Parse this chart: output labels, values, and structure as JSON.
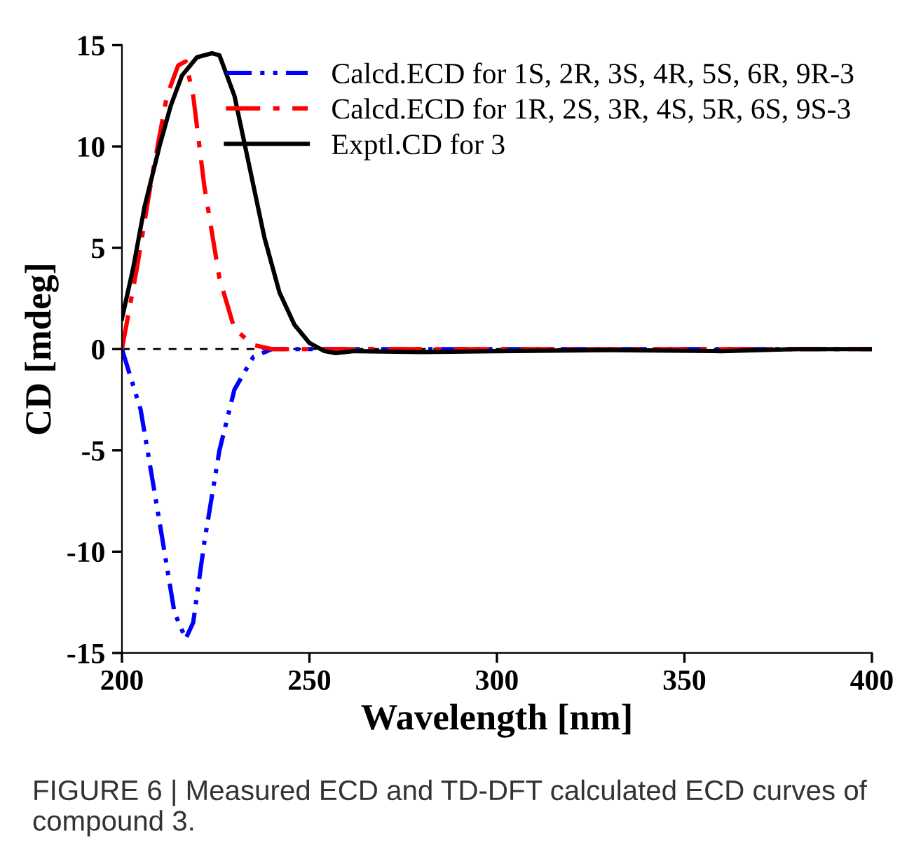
{
  "chart_data": {
    "type": "line",
    "xlabel": "Wavelength [nm]",
    "ylabel": "CD [mdeg]",
    "xlim": [
      200,
      400
    ],
    "xticks": [
      200,
      250,
      300,
      350,
      400
    ],
    "ylim": [
      -15,
      15
    ],
    "yticks": [
      -15,
      -10,
      -5,
      0,
      5,
      10,
      15
    ],
    "grid": false,
    "legend": "top right",
    "marker": "none",
    "ref_lines": [
      {
        "axis": "y",
        "value": 0,
        "color": "#000000",
        "line_style": "dashed"
      }
    ],
    "annotations": [
      "FIGURE 6 | Measured ECD and TD-DFT calculated ECD curves of compound 3."
    ],
    "series": [
      {
        "name": "Calcd.ECD for 1S, 2R, 3S, 4R, 5S, 6R, 9R-3",
        "color": "#0000ff",
        "line_style": "dotted",
        "x": [
          200,
          205,
          210,
          214,
          217,
          219,
          222,
          226,
          230,
          235,
          240,
          260,
          300,
          350,
          400
        ],
        "values": [
          0,
          -3,
          -8.5,
          -13,
          -14.3,
          -13.5,
          -9.5,
          -5,
          -2,
          -0.4,
          0,
          0,
          0,
          0,
          0
        ]
      },
      {
        "name": "Calcd.ECD for 1R, 2S, 3R, 4S, 5R, 6S, 9S-3",
        "color": "#ff0000",
        "line_style": "dashed",
        "x": [
          200,
          204,
          208,
          212,
          215,
          217,
          219,
          222,
          226,
          230,
          235,
          240,
          260,
          300,
          350,
          400
        ],
        "values": [
          0,
          4,
          8.5,
          12.5,
          14,
          14.2,
          12.5,
          8,
          3.5,
          1,
          0.2,
          0,
          0,
          0,
          0,
          0
        ]
      },
      {
        "name": "Exptl.CD for 3",
        "color": "#000000",
        "line_style": "solid",
        "x": [
          200,
          203,
          206,
          210,
          213,
          216,
          220,
          224,
          226,
          230,
          234,
          238,
          242,
          246,
          250,
          254,
          257,
          262,
          280,
          300,
          330,
          360,
          380,
          400
        ],
        "values": [
          1.5,
          4,
          7,
          10,
          12,
          13.5,
          14.4,
          14.6,
          14.5,
          12.5,
          9,
          5.5,
          2.8,
          1.2,
          0.3,
          -0.1,
          -0.2,
          -0.1,
          -0.15,
          -0.1,
          -0.05,
          -0.1,
          0,
          0
        ]
      }
    ]
  }
}
